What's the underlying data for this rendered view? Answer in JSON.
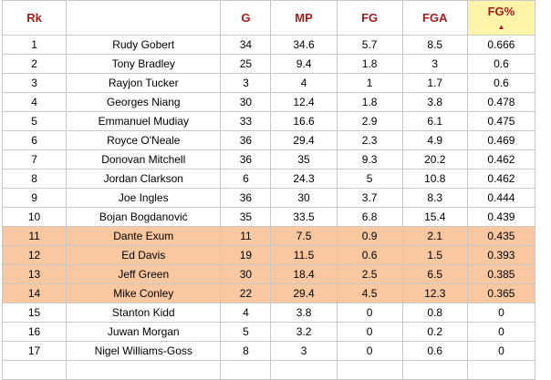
{
  "columns": [
    "Rk",
    "",
    "G",
    "MP",
    "FG",
    "FGA",
    "FG%"
  ],
  "sort_indicator": "▲",
  "rows": [
    {
      "rk": "1",
      "player": "Rudy Gobert",
      "g": "34",
      "mp": "34.6",
      "fg": "5.7",
      "fga": "8.5",
      "fgp": "0.666",
      "highlight": false
    },
    {
      "rk": "2",
      "player": "Tony Bradley",
      "g": "25",
      "mp": "9.4",
      "fg": "1.8",
      "fga": "3",
      "fgp": "0.6",
      "highlight": false
    },
    {
      "rk": "3",
      "player": "Rayjon Tucker",
      "g": "3",
      "mp": "4",
      "fg": "1",
      "fga": "1.7",
      "fgp": "0.6",
      "highlight": false
    },
    {
      "rk": "4",
      "player": "Georges Niang",
      "g": "30",
      "mp": "12.4",
      "fg": "1.8",
      "fga": "3.8",
      "fgp": "0.478",
      "highlight": false
    },
    {
      "rk": "5",
      "player": "Emmanuel Mudiay",
      "g": "33",
      "mp": "16.6",
      "fg": "2.9",
      "fga": "6.1",
      "fgp": "0.475",
      "highlight": false
    },
    {
      "rk": "6",
      "player": "Royce O'Neale",
      "g": "36",
      "mp": "29.4",
      "fg": "2.3",
      "fga": "4.9",
      "fgp": "0.469",
      "highlight": false
    },
    {
      "rk": "7",
      "player": "Donovan Mitchell",
      "g": "36",
      "mp": "35",
      "fg": "9.3",
      "fga": "20.2",
      "fgp": "0.462",
      "highlight": false
    },
    {
      "rk": "8",
      "player": "Jordan Clarkson",
      "g": "6",
      "mp": "24.3",
      "fg": "5",
      "fga": "10.8",
      "fgp": "0.462",
      "highlight": false
    },
    {
      "rk": "9",
      "player": "Joe Ingles",
      "g": "36",
      "mp": "30",
      "fg": "3.7",
      "fga": "8.3",
      "fgp": "0.444",
      "highlight": false
    },
    {
      "rk": "10",
      "player": "Bojan Bogdanović",
      "g": "35",
      "mp": "33.5",
      "fg": "6.8",
      "fga": "15.4",
      "fgp": "0.439",
      "highlight": false
    },
    {
      "rk": "11",
      "player": "Dante Exum",
      "g": "11",
      "mp": "7.5",
      "fg": "0.9",
      "fga": "2.1",
      "fgp": "0.435",
      "highlight": true
    },
    {
      "rk": "12",
      "player": "Ed Davis",
      "g": "19",
      "mp": "11.5",
      "fg": "0.6",
      "fga": "1.5",
      "fgp": "0.393",
      "highlight": true
    },
    {
      "rk": "13",
      "player": "Jeff Green",
      "g": "30",
      "mp": "18.4",
      "fg": "2.5",
      "fga": "6.5",
      "fgp": "0.385",
      "highlight": true
    },
    {
      "rk": "14",
      "player": "Mike Conley",
      "g": "22",
      "mp": "29.4",
      "fg": "4.5",
      "fga": "12.3",
      "fgp": "0.365",
      "highlight": true
    },
    {
      "rk": "15",
      "player": "Stanton Kidd",
      "g": "4",
      "mp": "3.8",
      "fg": "0",
      "fga": "0.8",
      "fgp": "0",
      "highlight": false
    },
    {
      "rk": "16",
      "player": "Juwan Morgan",
      "g": "5",
      "mp": "3.2",
      "fg": "0",
      "fga": "0.2",
      "fgp": "0",
      "highlight": false
    },
    {
      "rk": "17",
      "player": "Nigel Williams-Goss",
      "g": "8",
      "mp": "3",
      "fg": "0",
      "fga": "0.6",
      "fgp": "0",
      "highlight": false
    }
  ],
  "colors": {
    "header_text": "#a61c1c",
    "sorted_header_bg": "#fff4a8",
    "highlight_row_bg": "#f9c8a1",
    "grid_line": "#c8c8c8"
  }
}
